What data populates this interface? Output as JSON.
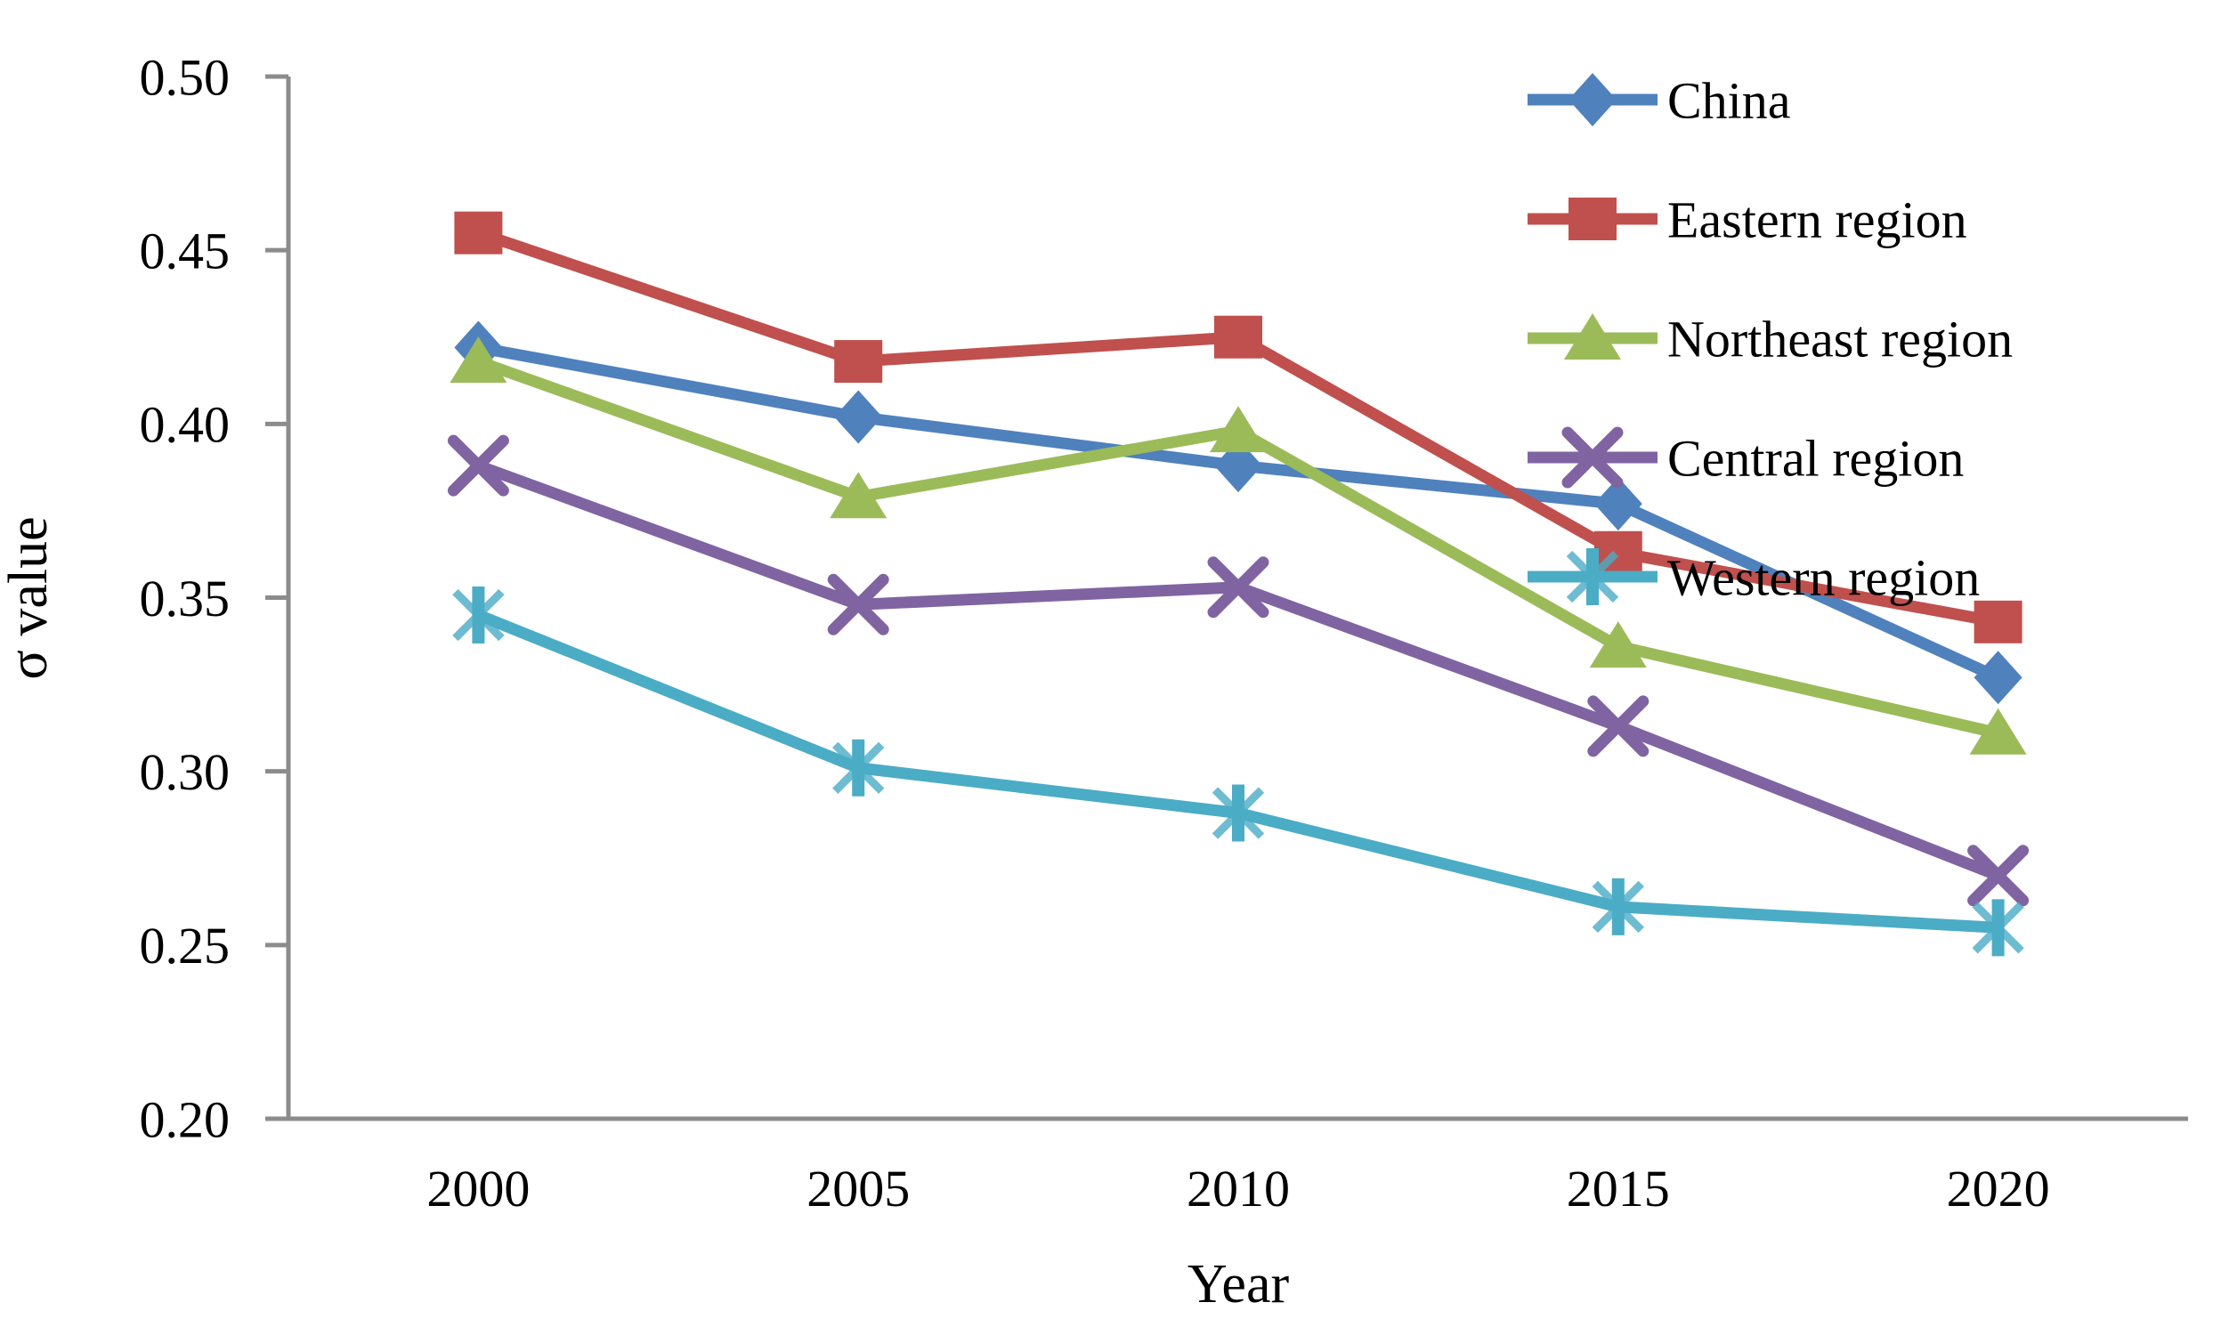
{
  "chart_data": {
    "type": "line",
    "title": "",
    "xlabel": "Year",
    "ylabel": "σ value",
    "categories": [
      "2000",
      "2005",
      "2010",
      "2015",
      "2020"
    ],
    "series": [
      {
        "name": "China",
        "color": "#4F81BD",
        "marker": "diamond",
        "values": [
          0.422,
          0.402,
          0.388,
          0.377,
          0.327
        ]
      },
      {
        "name": "Eastern region",
        "color": "#C0504D",
        "marker": "square",
        "values": [
          0.455,
          0.418,
          0.425,
          0.363,
          0.343
        ]
      },
      {
        "name": "Northeast region",
        "color": "#9BBB59",
        "marker": "triangle",
        "values": [
          0.418,
          0.379,
          0.398,
          0.336,
          0.311
        ]
      },
      {
        "name": "Central region",
        "color": "#8064A2",
        "marker": "x",
        "values": [
          0.388,
          0.348,
          0.353,
          0.313,
          0.27
        ]
      },
      {
        "name": "Western region",
        "color": "#4BACC6",
        "marker": "star",
        "values": [
          0.345,
          0.301,
          0.288,
          0.261,
          0.255
        ]
      }
    ],
    "ylim": [
      0.2,
      0.5
    ],
    "ytick_labels": [
      "0.50",
      "0.45",
      "0.40",
      "0.35",
      "0.30",
      "0.25",
      "0.20"
    ],
    "grid": false,
    "legend_position": "top-right",
    "axis_color": "#8C8C8C",
    "text_color": "#000000"
  }
}
